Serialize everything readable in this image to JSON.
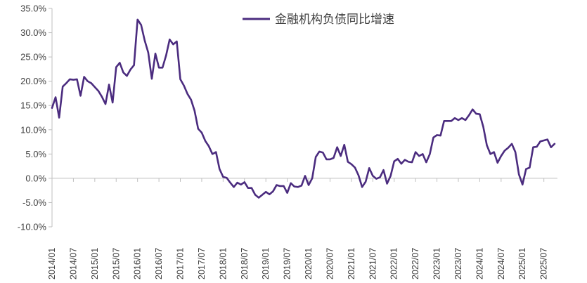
{
  "chart_data": {
    "type": "line",
    "title": "",
    "xlabel": "",
    "ylabel": "",
    "ylim": [
      -10,
      35
    ],
    "y_ticks": [
      -10,
      -5,
      0,
      5,
      10,
      15,
      20,
      25,
      30,
      35
    ],
    "y_tick_labels": [
      "-10.0%",
      "-5.0%",
      "0.0%",
      "5.0%",
      "10.0%",
      "15.0%",
      "20.0%",
      "25.0%",
      "30.0%",
      "35.0%"
    ],
    "x_tick_labels": [
      "2014/01",
      "2014/07",
      "2015/01",
      "2015/07",
      "2016/01",
      "2016/07",
      "2017/01",
      "2017/07",
      "2018/01",
      "2018/07",
      "2019/01",
      "2019/07",
      "2020/01",
      "2020/07",
      "2021/01",
      "2021/07",
      "2022/01",
      "2022/07",
      "2023/01",
      "2023/07",
      "2024/01",
      "2024/07",
      "2025/01",
      "2025/07"
    ],
    "legend_position": "top-center",
    "grid": false,
    "series": [
      {
        "name": "金融机构负债同比增速",
        "color": "#4B2C7F",
        "x": [
          "2014/01",
          "2014/02",
          "2014/03",
          "2014/04",
          "2014/05",
          "2014/06",
          "2014/07",
          "2014/08",
          "2014/09",
          "2014/10",
          "2014/11",
          "2014/12",
          "2015/01",
          "2015/02",
          "2015/03",
          "2015/04",
          "2015/05",
          "2015/06",
          "2015/07",
          "2015/08",
          "2015/09",
          "2015/10",
          "2015/11",
          "2015/12",
          "2016/01",
          "2016/02",
          "2016/03",
          "2016/04",
          "2016/05",
          "2016/06",
          "2016/07",
          "2016/08",
          "2016/09",
          "2016/10",
          "2016/11",
          "2016/12",
          "2017/01",
          "2017/02",
          "2017/03",
          "2017/04",
          "2017/05",
          "2017/06",
          "2017/07",
          "2017/08",
          "2017/09",
          "2017/10",
          "2017/11",
          "2017/12",
          "2018/01",
          "2018/02",
          "2018/03",
          "2018/04",
          "2018/05",
          "2018/06",
          "2018/07",
          "2018/08",
          "2018/09",
          "2018/10",
          "2018/11",
          "2018/12",
          "2019/01",
          "2019/02",
          "2019/03",
          "2019/04",
          "2019/05",
          "2019/06",
          "2019/07",
          "2019/08",
          "2019/09",
          "2019/10",
          "2019/11",
          "2019/12",
          "2020/01",
          "2020/02",
          "2020/03",
          "2020/04",
          "2020/05",
          "2020/06",
          "2020/07",
          "2020/08",
          "2020/09",
          "2020/10",
          "2020/11",
          "2020/12",
          "2021/01",
          "2021/02",
          "2021/03",
          "2021/04",
          "2021/05",
          "2021/06",
          "2021/07",
          "2021/08",
          "2021/09",
          "2021/10",
          "2021/11",
          "2021/12",
          "2022/01",
          "2022/02",
          "2022/03",
          "2022/04",
          "2022/05",
          "2022/06",
          "2022/07",
          "2022/08",
          "2022/09",
          "2022/10",
          "2022/11",
          "2022/12",
          "2023/01",
          "2023/02",
          "2023/03",
          "2023/04",
          "2023/05",
          "2023/06",
          "2023/07",
          "2023/08",
          "2023/09",
          "2023/10",
          "2023/11",
          "2023/12",
          "2024/01",
          "2024/02",
          "2024/03",
          "2024/04",
          "2024/05",
          "2024/06",
          "2024/07",
          "2024/08",
          "2024/09",
          "2024/10",
          "2024/11",
          "2024/12",
          "2025/01",
          "2025/02",
          "2025/03",
          "2025/04",
          "2025/05",
          "2025/06",
          "2025/07",
          "2025/08",
          "2025/09",
          "2025/10"
        ],
        "values": [
          14.5,
          16.7,
          12.5,
          18.9,
          19.6,
          20.4,
          20.3,
          20.4,
          17.0,
          20.9,
          20.0,
          19.6,
          18.8,
          18.0,
          16.8,
          15.3,
          19.3,
          15.6,
          22.9,
          23.8,
          21.8,
          21.1,
          22.4,
          23.3,
          32.7,
          31.6,
          28.4,
          25.9,
          20.5,
          25.7,
          22.8,
          22.8,
          25.3,
          28.6,
          27.6,
          28.2,
          20.4,
          19.1,
          17.4,
          16.2,
          13.9,
          10.2,
          9.4,
          7.7,
          6.6,
          5.0,
          5.4,
          1.9,
          0.3,
          0.1,
          -0.9,
          -1.8,
          -0.9,
          -1.3,
          -0.8,
          -2.0,
          -2.0,
          -3.4,
          -4.0,
          -3.4,
          -2.8,
          -3.3,
          -2.7,
          -1.4,
          -1.6,
          -1.6,
          -3.0,
          -1.0,
          -1.7,
          -1.8,
          -1.5,
          0.5,
          -1.4,
          0.0,
          4.4,
          5.5,
          5.3,
          3.9,
          3.9,
          4.2,
          6.4,
          4.6,
          6.9,
          3.4,
          2.9,
          2.2,
          0.6,
          -1.8,
          -0.7,
          2.1,
          0.5,
          -0.1,
          0.2,
          1.7,
          -1.1,
          0.5,
          3.5,
          4.0,
          3.0,
          3.8,
          3.4,
          3.3,
          5.4,
          4.6,
          5.0,
          3.3,
          5.0,
          8.4,
          8.9,
          8.8,
          11.8,
          11.8,
          11.8,
          12.4,
          12.0,
          12.4,
          12.0,
          13.0,
          14.2,
          13.3,
          13.2,
          10.6,
          6.8,
          5.0,
          5.4,
          3.2,
          4.6,
          5.7,
          6.3,
          7.1,
          5.4,
          0.8,
          -1.3,
          1.9,
          2.2,
          6.4,
          6.5,
          7.6,
          7.8,
          8.0,
          6.4,
          7.1
        ]
      }
    ]
  }
}
